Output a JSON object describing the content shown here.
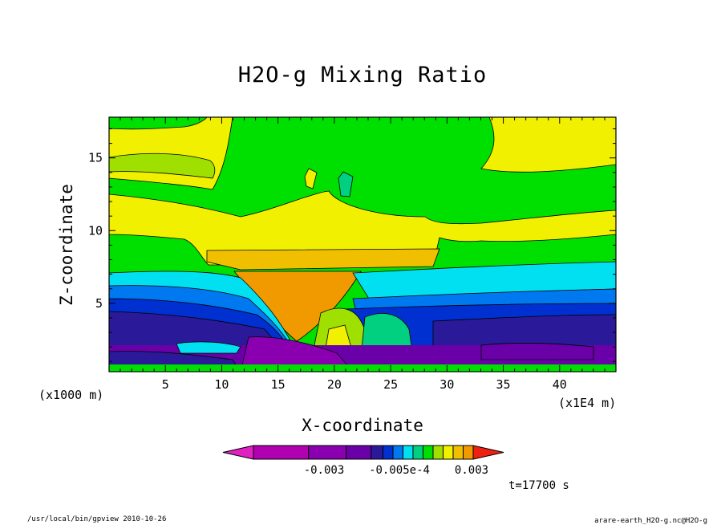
{
  "chart_data": {
    "type": "heatmap",
    "title": "H2O-g Mixing Ratio",
    "xlabel": "X-coordinate",
    "ylabel": "Z-coordinate",
    "x_unit_note": "(x1000 m)",
    "x_scale_note": "(x1E4 m)",
    "xlim": [
      0,
      45
    ],
    "ylim": [
      0.3,
      17.8
    ],
    "x_ticks": [
      5,
      10,
      15,
      20,
      25,
      30,
      35,
      40
    ],
    "y_ticks": [
      5,
      10,
      15
    ],
    "colorbar": {
      "colors": [
        "#e020c0",
        "#b000b0",
        "#8a00b0",
        "#6a00a8",
        "#2a1a9a",
        "#0030d0",
        "#0078f0",
        "#00e0f0",
        "#00d080",
        "#00e000",
        "#a0e000",
        "#f0f000",
        "#f0c000",
        "#f09a00",
        "#f02010"
      ],
      "labels": [
        "-0.003",
        "-0.005e-4",
        "0.003"
      ]
    },
    "time_label": "t=17700 s",
    "footer_left": "/usr/local/bin/gpview  2010-10-26",
    "footer_right": "arare-earth_H2O-g.nc@H2O-g"
  }
}
